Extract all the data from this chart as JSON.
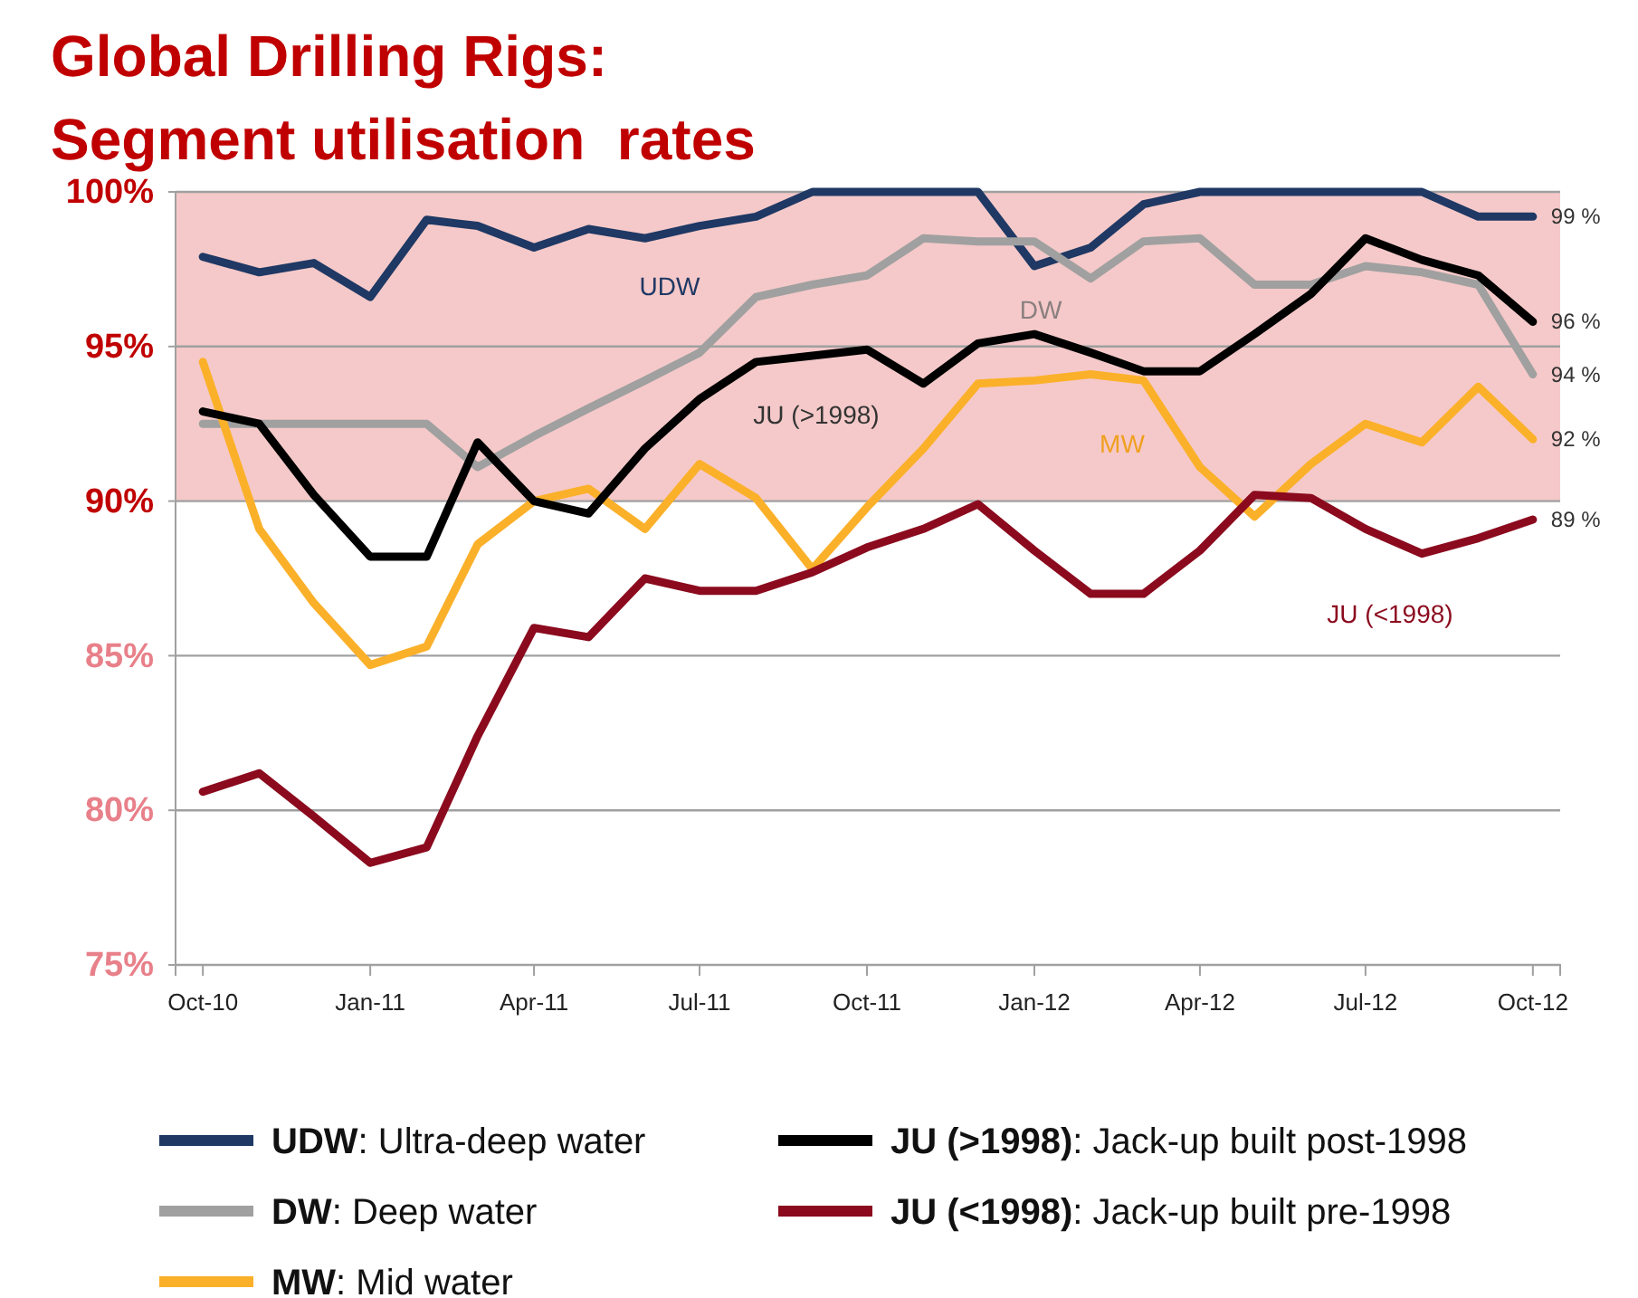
{
  "chart_data": {
    "type": "line",
    "title": "Global Drilling Rigs:",
    "subtitle": "Segment utilisation  rates",
    "x": [
      "2010-10",
      "2010-11",
      "2010-12",
      "2011-01",
      "2011-02",
      "2011-03",
      "2011-04",
      "2011-05",
      "2011-06",
      "2011-07",
      "2011-08",
      "2011-09",
      "2011-10",
      "2011-11",
      "2011-12",
      "2012-01",
      "2012-02",
      "2012-03",
      "2012-04",
      "2012-05",
      "2012-06",
      "2012-07",
      "2012-08",
      "2012-09",
      "2012-10"
    ],
    "series": [
      {
        "name": "UDW: Ultra-deep water",
        "color": "#1f3864",
        "values": [
          97.9,
          97.4,
          97.7,
          96.6,
          99.1,
          98.9,
          98.2,
          98.8,
          98.5,
          98.9,
          99.2,
          100,
          100,
          100,
          100,
          97.6,
          98.2,
          99.6,
          100,
          100,
          100,
          100,
          100,
          99.2,
          99.2
        ],
        "value_labels": [
          null,
          null,
          null,
          null,
          null,
          null,
          null,
          null,
          null,
          null,
          null,
          null,
          null,
          null,
          null,
          null,
          null,
          null,
          null,
          null,
          null,
          null,
          null,
          null,
          "99 %"
        ]
      },
      {
        "name": "DW: Deep water",
        "color": "#a0a0a0",
        "values": [
          92.5,
          92.5,
          92.5,
          92.5,
          92.5,
          91.1,
          92.1,
          93.0,
          93.9,
          94.8,
          96.6,
          97.0,
          97.3,
          98.5,
          98.4,
          98.4,
          97.2,
          98.4,
          98.5,
          97.0,
          97.0,
          97.6,
          97.4,
          97.0,
          94.1
        ],
        "value_labels": [
          null,
          null,
          null,
          null,
          null,
          null,
          null,
          null,
          null,
          null,
          null,
          null,
          null,
          null,
          null,
          null,
          null,
          null,
          null,
          null,
          null,
          null,
          null,
          null,
          "94 %"
        ]
      },
      {
        "name": "MW: Mid water",
        "color": "#fbb02a",
        "values": [
          94.5,
          89.1,
          86.7,
          84.7,
          85.3,
          88.6,
          90.0,
          90.4,
          89.1,
          91.2,
          90.1,
          87.8,
          89.8,
          91.7,
          93.8,
          93.9,
          94.1,
          93.9,
          91.1,
          89.5,
          91.2,
          92.5,
          91.9,
          93.7,
          92.0
        ],
        "value_labels": [
          null,
          null,
          null,
          null,
          null,
          null,
          null,
          null,
          null,
          null,
          null,
          null,
          null,
          null,
          null,
          null,
          null,
          null,
          null,
          null,
          null,
          null,
          null,
          null,
          "92 %"
        ]
      },
      {
        "name": "JU (>1998): Jack-up built post-1998",
        "color": "#000000",
        "values": [
          92.9,
          92.5,
          90.2,
          88.2,
          88.2,
          91.9,
          90.0,
          89.6,
          91.7,
          93.3,
          94.5,
          94.7,
          94.9,
          93.8,
          95.1,
          95.4,
          94.8,
          94.2,
          94.2,
          95.4,
          96.7,
          98.5,
          97.8,
          97.3,
          95.8
        ],
        "value_labels": [
          null,
          null,
          null,
          null,
          null,
          null,
          null,
          null,
          null,
          null,
          null,
          null,
          null,
          null,
          null,
          null,
          null,
          null,
          null,
          null,
          null,
          null,
          null,
          null,
          "96 %"
        ]
      },
      {
        "name": "JU (<1998): Jack-up built pre-1998",
        "color": "#8b0a1e",
        "values": [
          80.6,
          81.2,
          79.8,
          78.3,
          78.8,
          82.4,
          85.9,
          85.6,
          87.5,
          87.1,
          87.1,
          87.7,
          88.5,
          89.1,
          89.9,
          88.4,
          87.0,
          87.0,
          88.4,
          90.2,
          90.1,
          89.1,
          88.3,
          88.8,
          89.4
        ],
        "value_labels": [
          null,
          null,
          null,
          null,
          null,
          null,
          null,
          null,
          null,
          null,
          null,
          null,
          null,
          null,
          null,
          null,
          null,
          null,
          null,
          null,
          null,
          null,
          null,
          null,
          "89 %"
        ]
      }
    ],
    "xlim": [
      "2010-09-16",
      "2012-10-16"
    ],
    "xticks": [
      {
        "value": "2010-10",
        "label": "Oct-10"
      },
      {
        "value": "2011-01",
        "label": "Jan-11"
      },
      {
        "value": "2011-04",
        "label": "Apr-11"
      },
      {
        "value": "2011-07",
        "label": "Jul-11"
      },
      {
        "value": "2011-10",
        "label": "Oct-11"
      },
      {
        "value": "2012-01",
        "label": "Jan-12"
      },
      {
        "value": "2012-04",
        "label": "Apr-12"
      },
      {
        "value": "2012-07",
        "label": "Jul-12"
      },
      {
        "value": "2012-10",
        "label": "Oct-12"
      }
    ],
    "ylim": [
      75,
      100
    ],
    "yticks": [
      {
        "value": 75,
        "label": "75%"
      },
      {
        "value": 80,
        "label": "80%"
      },
      {
        "value": 85,
        "label": "85%"
      },
      {
        "value": 90,
        "label": "90%"
      },
      {
        "value": 95,
        "label": "95%"
      },
      {
        "value": 100,
        "label": "100%"
      }
    ],
    "bands": [
      {
        "axis": "y",
        "from": 90,
        "to": 100,
        "color": "#f5c9c9"
      }
    ],
    "annotations": [
      "UDW",
      "DW",
      "JU (>1998)",
      "MW",
      "JU (<1998)"
    ],
    "grid": "y",
    "legend": "bottom",
    "marker": "none",
    "line_style": "solid"
  }
}
